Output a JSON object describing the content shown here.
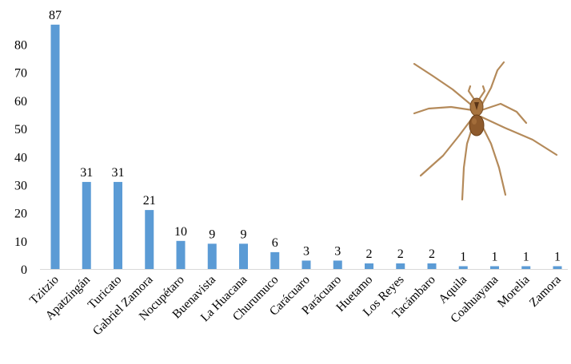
{
  "chart_data": {
    "type": "bar",
    "categories": [
      "Tzitzio",
      "Apatzingán",
      "Turicato",
      "Gabriel Zamora",
      "Nocupétaro",
      "Buenavista",
      "La Huacana",
      "Churumuco",
      "Carácuaro",
      "Parácuaro",
      "Huetamo",
      "Los Reyes",
      "Tacámbaro",
      "Aquila",
      "Coahuayana",
      "Morelia",
      "Zamora"
    ],
    "values": [
      87,
      31,
      31,
      21,
      10,
      9,
      9,
      6,
      3,
      3,
      2,
      2,
      2,
      1,
      1,
      1,
      1
    ],
    "data_labels": [
      "87",
      "31",
      "31",
      "21",
      "10",
      "9",
      "9",
      "6",
      "3",
      "3",
      "2",
      "2",
      "2",
      "1",
      "1",
      "1",
      "1"
    ],
    "yticks": [
      0,
      10,
      20,
      30,
      40,
      50,
      60,
      70,
      80
    ],
    "ytick_labels": [
      "0",
      "10",
      "20",
      "30",
      "40",
      "50",
      "60",
      "70",
      "80"
    ],
    "ylim": [
      0,
      90
    ],
    "title": "",
    "xlabel": "",
    "ylabel": "",
    "grid": false,
    "legend": "none",
    "bar_color": "#5B9BD5",
    "label_rotation_deg": -45,
    "decoration_icon": "brown-recluse-spider-photo"
  }
}
